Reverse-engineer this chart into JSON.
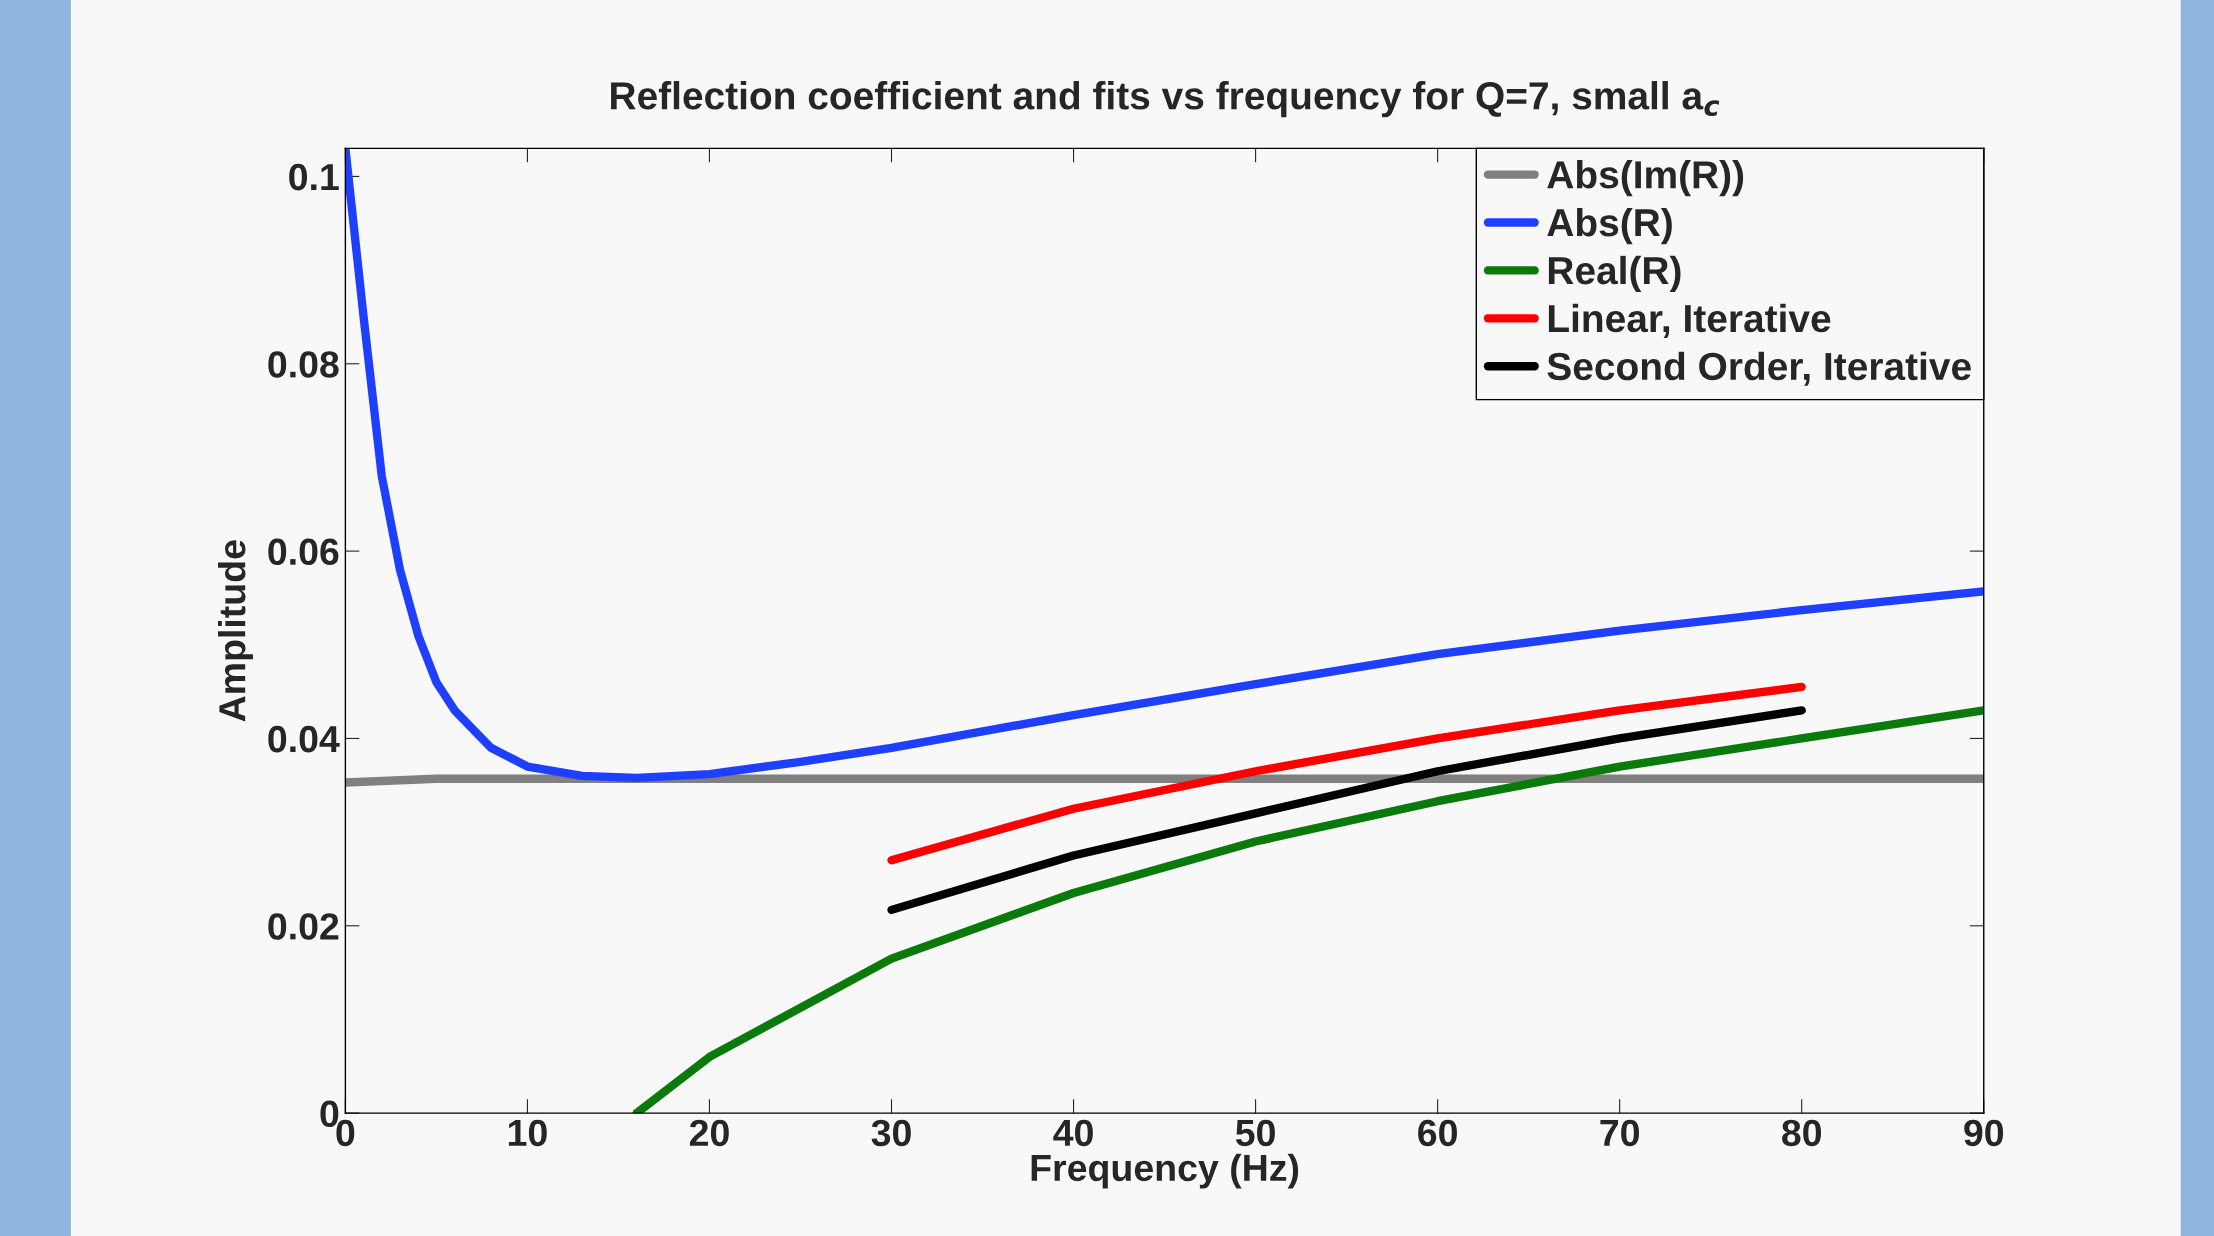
{
  "chart_data": {
    "type": "line",
    "title": "Reflection coefficient and fits vs frequency for Q=7, small a$_{c}$",
    "xlabel": "Frequency (Hz)",
    "ylabel": "Amplitude",
    "xlim": [
      0,
      90
    ],
    "ylim": [
      0,
      0.103
    ],
    "xticks": [
      0,
      10,
      20,
      30,
      40,
      50,
      60,
      70,
      80,
      90
    ],
    "yticks": [
      0,
      0.02,
      0.04,
      0.06,
      0.08,
      0.1
    ],
    "grid": false,
    "legend": "top right",
    "line_style": "solid",
    "marker": "none",
    "series": [
      {
        "name": "Abs(Im(R))",
        "color": "#808080",
        "x": [
          0,
          5,
          90
        ],
        "values": [
          0.0353,
          0.0357,
          0.0357
        ]
      },
      {
        "name": "Abs(R)",
        "color": "#1f3fff",
        "x": [
          0,
          1,
          2,
          3,
          4,
          5,
          6,
          8,
          10,
          13,
          16,
          20,
          25,
          30,
          40,
          50,
          60,
          70,
          80,
          90
        ],
        "values": [
          0.103,
          0.085,
          0.068,
          0.058,
          0.051,
          0.046,
          0.043,
          0.039,
          0.037,
          0.036,
          0.0358,
          0.0362,
          0.0375,
          0.039,
          0.0425,
          0.0458,
          0.049,
          0.0515,
          0.0537,
          0.0557
        ]
      },
      {
        "name": "Real(R)",
        "color": "#0a7a0a",
        "x": [
          16,
          20,
          30,
          40,
          50,
          60,
          70,
          80,
          90
        ],
        "values": [
          0,
          0.006,
          0.0165,
          0.0235,
          0.029,
          0.0333,
          0.037,
          0.04,
          0.043
        ]
      },
      {
        "name": "Linear, Iterative",
        "color": "#ff0000",
        "x": [
          30,
          40,
          50,
          60,
          70,
          80
        ],
        "values": [
          0.027,
          0.0325,
          0.0365,
          0.04,
          0.043,
          0.0455
        ]
      },
      {
        "name": "Second Order, Iterative",
        "color": "#000000",
        "x": [
          30,
          40,
          50,
          60,
          70,
          80
        ],
        "values": [
          0.0217,
          0.0275,
          0.032,
          0.0365,
          0.04,
          0.043
        ]
      }
    ]
  }
}
